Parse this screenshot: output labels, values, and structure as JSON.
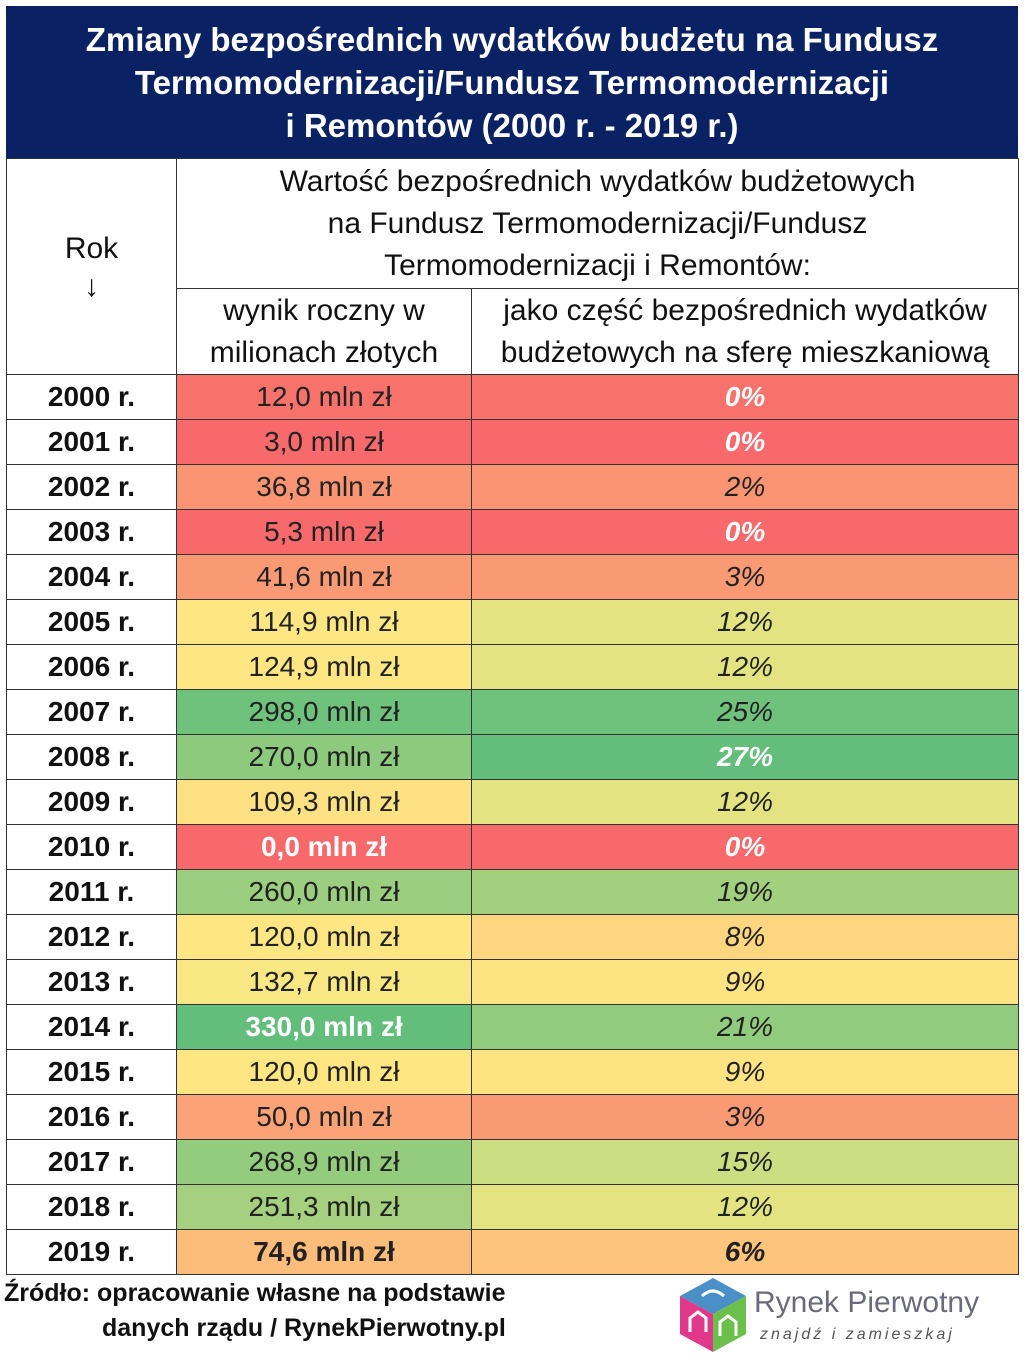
{
  "title": {
    "line1": "Zmiany bezpośrednich wydatków budżetu na Fundusz",
    "line2": "Termomodernizacji/Fundusz Termomodernizacji",
    "line3": "i Remontów (2000 r. - 2019 r.)"
  },
  "header": {
    "year_label": "Rok",
    "year_arrow": "↓",
    "main_line1": "Wartość bezpośrednich wydatków budżetowych",
    "main_line2": "na Fundusz Termomodernizacji/Fundusz",
    "main_line3": "Termomodernizacji i Remontów:",
    "col1_line1": "wynik roczny w",
    "col1_line2": "milionach złotych",
    "col2_line1": "jako część bezpośrednich wydatków",
    "col2_line2": "budżetowych na sferę mieszkaniową"
  },
  "chart_data": {
    "type": "table",
    "columns": [
      "Rok",
      "wynik roczny w milionach złotych",
      "jako część bezpośrednich wydatków budżetowych na sferę mieszkaniową"
    ],
    "rows": [
      {
        "year": "2000 r.",
        "value": "12,0 mln zł",
        "pct": "0%",
        "value_color": "#f8726c",
        "pct_color": "#f8726c",
        "value_style": "normal",
        "pct_style": "white"
      },
      {
        "year": "2001 r.",
        "value": "3,0 mln zł",
        "pct": "0%",
        "value_color": "#f8696b",
        "pct_color": "#f8696b",
        "value_style": "normal",
        "pct_style": "white"
      },
      {
        "year": "2002 r.",
        "value": "36,8 mln zł",
        "pct": "2%",
        "value_color": "#fa9473",
        "pct_color": "#fa9473",
        "value_style": "normal",
        "pct_style": "normal"
      },
      {
        "year": "2003 r.",
        "value": "5,3 mln zł",
        "pct": "0%",
        "value_color": "#f8696b",
        "pct_color": "#f8696b",
        "value_style": "normal",
        "pct_style": "white"
      },
      {
        "year": "2004 r.",
        "value": "41,6 mln zł",
        "pct": "3%",
        "value_color": "#fa9a74",
        "pct_color": "#fa9a74",
        "value_style": "normal",
        "pct_style": "normal"
      },
      {
        "year": "2005 r.",
        "value": "114,9 mln zł",
        "pct": "12%",
        "value_color": "#fee783",
        "pct_color": "#e4e382",
        "value_style": "normal",
        "pct_style": "normal"
      },
      {
        "year": "2006 r.",
        "value": "124,9 mln zł",
        "pct": "12%",
        "value_color": "#fee783",
        "pct_color": "#e4e382",
        "value_style": "normal",
        "pct_style": "normal"
      },
      {
        "year": "2007 r.",
        "value": "298,0 mln zł",
        "pct": "25%",
        "value_color": "#6fc27c",
        "pct_color": "#6fc27c",
        "value_style": "normal",
        "pct_style": "normal"
      },
      {
        "year": "2008 r.",
        "value": "270,0 mln zł",
        "pct": "27%",
        "value_color": "#8dca7e",
        "pct_color": "#63be7b",
        "value_style": "normal",
        "pct_style": "white"
      },
      {
        "year": "2009 r.",
        "value": "109,3 mln zł",
        "pct": "12%",
        "value_color": "#fee182",
        "pct_color": "#e4e382",
        "value_style": "normal",
        "pct_style": "normal"
      },
      {
        "year": "2010 r.",
        "value": "0,0 mln zł",
        "pct": "0%",
        "value_color": "#f8696b",
        "pct_color": "#f8696b",
        "value_style": "white",
        "pct_style": "white"
      },
      {
        "year": "2011 r.",
        "value": "260,0 mln zł",
        "pct": "19%",
        "value_color": "#9cce7f",
        "pct_color": "#a2d07f",
        "value_style": "normal",
        "pct_style": "normal"
      },
      {
        "year": "2012 r.",
        "value": "120,0 mln zł",
        "pct": "8%",
        "value_color": "#fee783",
        "pct_color": "#fed680",
        "value_style": "normal",
        "pct_style": "normal"
      },
      {
        "year": "2013 r.",
        "value": "132,7 mln zł",
        "pct": "9%",
        "value_color": "#f8e783",
        "pct_color": "#fee382",
        "value_style": "normal",
        "pct_style": "normal"
      },
      {
        "year": "2014 r.",
        "value": "330,0 mln zł",
        "pct": "21%",
        "value_color": "#63be7b",
        "pct_color": "#90cb7e",
        "value_style": "white",
        "pct_style": "normal"
      },
      {
        "year": "2015 r.",
        "value": "120,0 mln zł",
        "pct": "9%",
        "value_color": "#fee783",
        "pct_color": "#fee382",
        "value_style": "normal",
        "pct_style": "normal"
      },
      {
        "year": "2016 r.",
        "value": "50,0 mln zł",
        "pct": "3%",
        "value_color": "#fba276",
        "pct_color": "#fa9a74",
        "value_style": "normal",
        "pct_style": "normal"
      },
      {
        "year": "2017 r.",
        "value": "268,9 mln zł",
        "pct": "15%",
        "value_color": "#94cc7e",
        "pct_color": "#cddd82",
        "value_style": "normal",
        "pct_style": "normal"
      },
      {
        "year": "2018 r.",
        "value": "251,3 mln zł",
        "pct": "12%",
        "value_color": "#a4d07f",
        "pct_color": "#e4e382",
        "value_style": "normal",
        "pct_style": "normal"
      },
      {
        "year": "2019 r.",
        "value": "74,6 mln zł",
        "pct": "6%",
        "value_color": "#fcbd7b",
        "pct_color": "#fdc47c",
        "value_style": "bold",
        "pct_style": "bold"
      }
    ]
  },
  "footer": {
    "source_line1": "Źródło: opracowanie własne na podstawie",
    "source_line2": "danych rządu / RynekPierwotny.pl"
  },
  "logo": {
    "name": "Rynek Pierwotny",
    "tagline": "znajdź i zamieszkaj",
    "colors": {
      "cube_top": "#4a90c8",
      "cube_left": "#e0388a",
      "cube_right": "#6ac04a"
    }
  }
}
